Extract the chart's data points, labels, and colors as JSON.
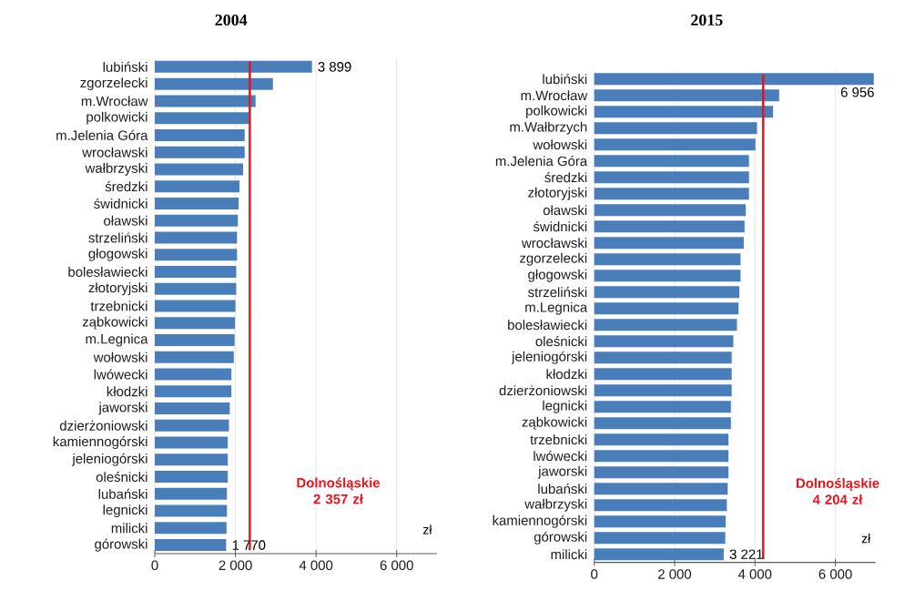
{
  "chart_data": [
    {
      "type": "bar",
      "orientation": "horizontal",
      "title": "2004",
      "xlabel": "zł",
      "color": "#4a7ebb",
      "grid": "x",
      "categories": [
        "lubiński",
        "zgorzelecki",
        "m.Wrocław",
        "polkowicki",
        "m.Jelenia Góra",
        "wrocławski",
        "wałbrzyski",
        "średzki",
        "świdnicki",
        "oławski",
        "strzeliński",
        "głogowski",
        "bolesławiecki",
        "złotoryjski",
        "trzebnicki",
        "ząbkowicki",
        "m.Legnica",
        "wołowski",
        "lwówecki",
        "kłodzki",
        "jaworski",
        "dzierżoniowski",
        "kamiennogórski",
        "jeleniogórski",
        "oleśnicki",
        "lubański",
        "legnicki",
        "milicki",
        "górowski"
      ],
      "values": [
        3899,
        2930,
        2500,
        2350,
        2230,
        2230,
        2190,
        2100,
        2080,
        2060,
        2040,
        2040,
        2020,
        2020,
        2000,
        1990,
        1980,
        1960,
        1900,
        1900,
        1860,
        1840,
        1810,
        1810,
        1810,
        1790,
        1790,
        1780,
        1770
      ],
      "value_labels": [
        "3 899",
        null,
        null,
        null,
        null,
        null,
        null,
        null,
        null,
        null,
        null,
        null,
        null,
        null,
        null,
        null,
        null,
        null,
        null,
        null,
        null,
        null,
        null,
        null,
        null,
        null,
        null,
        null,
        "1 770"
      ],
      "xlim": [
        0,
        7000
      ],
      "xticks": [
        0,
        {
          "value": 2000,
          "label": "2 000"
        },
        {
          "value": 4000,
          "label": "4 000"
        },
        {
          "value": 6000,
          "label": "6 000"
        }
      ],
      "ref_lines": [
        {
          "axis": "x",
          "value": 2357,
          "label": "Dolnośląskie 2 357 zł",
          "color": "#e8141c"
        }
      ]
    },
    {
      "type": "bar",
      "orientation": "horizontal",
      "title": "2015",
      "xlabel": "zł",
      "color": "#4a7ebb",
      "grid": "x",
      "categories": [
        "lubiński",
        "m.Wrocław",
        "polkowicki",
        "m.Wałbrzych",
        "wołowski",
        "m.Jelenia Góra",
        "średzki",
        "złotoryjski",
        "oławski",
        "świdnicki",
        "wrocławski",
        "zgorzelecki",
        "głogowski",
        "strzeliński",
        "m.Legnica",
        "bolesławiecki",
        "oleśnicki",
        "jeleniogórski",
        "kłodzki",
        "dzierżoniowski",
        "legnicki",
        "ząbkowicki",
        "trzebnicki",
        "lwówecki",
        "jaworski",
        "lubański",
        "wałbrzyski",
        "kamiennogórski",
        "górowski",
        "milicki"
      ],
      "values": [
        6956,
        4600,
        4450,
        4050,
        4010,
        3850,
        3850,
        3850,
        3770,
        3740,
        3720,
        3640,
        3640,
        3610,
        3590,
        3550,
        3460,
        3420,
        3420,
        3420,
        3400,
        3400,
        3340,
        3340,
        3340,
        3320,
        3300,
        3270,
        3260,
        3221
      ],
      "value_labels": [
        "6 956",
        null,
        null,
        null,
        null,
        null,
        null,
        null,
        null,
        null,
        null,
        null,
        null,
        null,
        null,
        null,
        null,
        null,
        null,
        null,
        null,
        null,
        null,
        null,
        null,
        null,
        null,
        null,
        null,
        "3 221"
      ],
      "xlim": [
        0,
        7000
      ],
      "xticks": [
        0,
        {
          "value": 2000,
          "label": "2 000"
        },
        {
          "value": 4000,
          "label": "4 000"
        },
        {
          "value": 6000,
          "label": "6 000"
        }
      ],
      "ref_lines": [
        {
          "axis": "x",
          "value": 4204,
          "label": "Dolnośląskie 4 204 zł",
          "color": "#e8141c"
        }
      ]
    }
  ]
}
